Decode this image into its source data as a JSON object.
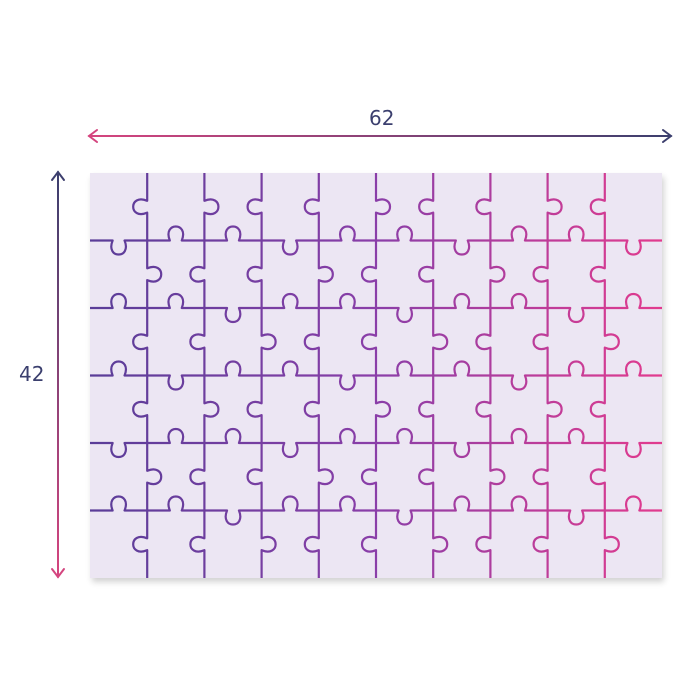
{
  "width_label": "62",
  "height_label": "42",
  "colors": {
    "board": "#ece6f3",
    "line_start": "#5a3d98",
    "line_end": "#e23b8e",
    "arrow_dark": "#3b3f6e",
    "arrow_pink": "#d6457f"
  }
}
